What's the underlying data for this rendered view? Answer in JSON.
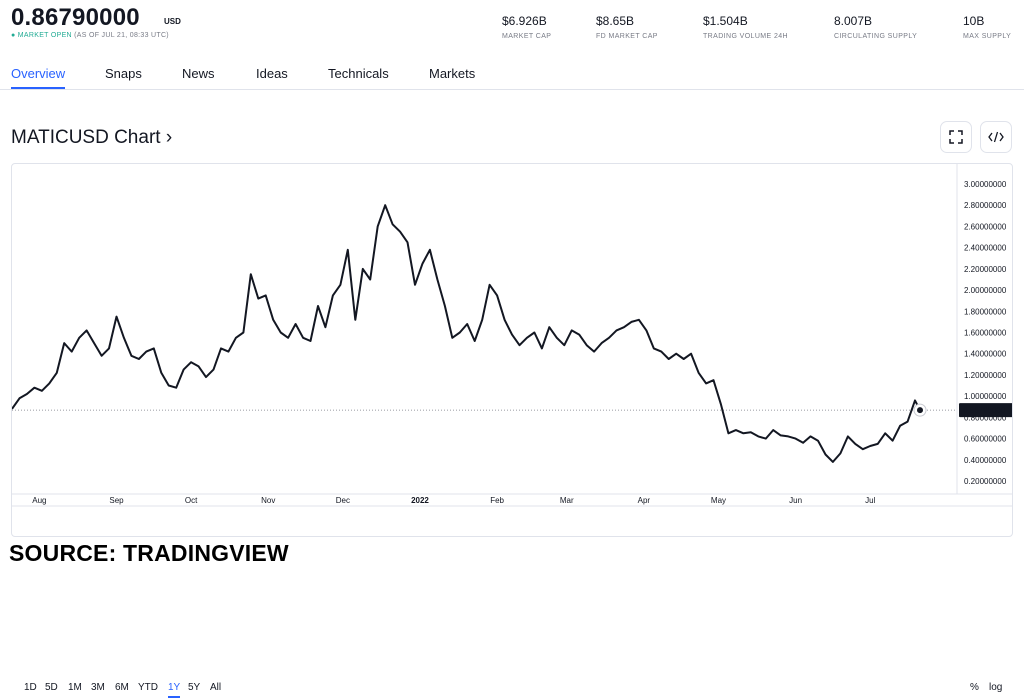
{
  "header": {
    "price": "0.86790000",
    "currency": "USD",
    "market_status": "MARKET OPEN",
    "as_of": "(AS OF JUL 21, 08:33 UTC)"
  },
  "stats": [
    {
      "value": "$6.926B",
      "label": "MARKET CAP"
    },
    {
      "value": "$8.65B",
      "label": "FD MARKET CAP"
    },
    {
      "value": "$1.504B",
      "label": "TRADING VOLUME 24H"
    },
    {
      "value": "8.007B",
      "label": "CIRCULATING SUPPLY"
    },
    {
      "value": "10B",
      "label": "MAX SUPPLY"
    }
  ],
  "tabs": [
    {
      "label": "Overview",
      "active": true
    },
    {
      "label": "Snaps"
    },
    {
      "label": "News"
    },
    {
      "label": "Ideas"
    },
    {
      "label": "Technicals"
    },
    {
      "label": "Markets"
    }
  ],
  "chart_title": "MATICUSD Chart ›",
  "icons": {
    "fullscreen": "fullscreen-icon",
    "embed": "code-icon"
  },
  "ranges": [
    "1D",
    "5D",
    "1M",
    "3M",
    "6M",
    "YTD",
    "1Y",
    "5Y",
    "All"
  ],
  "active_range": "1Y",
  "scale_options": {
    "percent": "%",
    "log": "log"
  },
  "source": "SOURCE: TRADINGVIEW",
  "chart_data": {
    "type": "line",
    "title": "",
    "xlabel": "",
    "ylabel": "",
    "x_tick_labels": [
      "Aug",
      "Sep",
      "Oct",
      "Nov",
      "Dec",
      "2022",
      "Feb",
      "Mar",
      "Apr",
      "May",
      "Jun",
      "Jul"
    ],
    "y_tick_labels": [
      "3.00000000",
      "2.80000000",
      "2.60000000",
      "2.40000000",
      "2.20000000",
      "2.00000000",
      "1.80000000",
      "1.60000000",
      "1.40000000",
      "1.20000000",
      "1.00000000",
      "0.80000000",
      "0.60000000",
      "0.40000000",
      "0.20000000"
    ],
    "ylim": [
      0.2,
      3.0
    ],
    "last_price_label": "0.86790000",
    "last_value": 0.8679,
    "grid": false,
    "line_color": "#131722",
    "series": [
      {
        "x": [
          "2021-07-21",
          "2021-07-24",
          "2021-07-27",
          "2021-07-30",
          "2021-08-02",
          "2021-08-05",
          "2021-08-08",
          "2021-08-11",
          "2021-08-14",
          "2021-08-17",
          "2021-08-20",
          "2021-08-23",
          "2021-08-26",
          "2021-08-29",
          "2021-09-01",
          "2021-09-04",
          "2021-09-07",
          "2021-09-10",
          "2021-09-13",
          "2021-09-16",
          "2021-09-19",
          "2021-09-22",
          "2021-09-25",
          "2021-09-28",
          "2021-10-01",
          "2021-10-04",
          "2021-10-07",
          "2021-10-10",
          "2021-10-13",
          "2021-10-16",
          "2021-10-19",
          "2021-10-22",
          "2021-10-25",
          "2021-10-28",
          "2021-10-31",
          "2021-11-03",
          "2021-11-06",
          "2021-11-09",
          "2021-11-12",
          "2021-11-15",
          "2021-11-18",
          "2021-11-21",
          "2021-11-24",
          "2021-11-27",
          "2021-11-30",
          "2021-12-03",
          "2021-12-06",
          "2021-12-09",
          "2021-12-12",
          "2021-12-15",
          "2021-12-18",
          "2021-12-21",
          "2021-12-24",
          "2021-12-27",
          "2021-12-30",
          "2022-01-02",
          "2022-01-05",
          "2022-01-08",
          "2022-01-11",
          "2022-01-14",
          "2022-01-17",
          "2022-01-20",
          "2022-01-23",
          "2022-01-26",
          "2022-01-29",
          "2022-02-01",
          "2022-02-04",
          "2022-02-07",
          "2022-02-10",
          "2022-02-13",
          "2022-02-16",
          "2022-02-19",
          "2022-02-22",
          "2022-02-25",
          "2022-02-28",
          "2022-03-03",
          "2022-03-06",
          "2022-03-09",
          "2022-03-12",
          "2022-03-15",
          "2022-03-18",
          "2022-03-21",
          "2022-03-24",
          "2022-03-27",
          "2022-03-30",
          "2022-04-02",
          "2022-04-05",
          "2022-04-08",
          "2022-04-11",
          "2022-04-14",
          "2022-04-17",
          "2022-04-20",
          "2022-04-23",
          "2022-04-26",
          "2022-04-29",
          "2022-05-02",
          "2022-05-05",
          "2022-05-08",
          "2022-05-11",
          "2022-05-14",
          "2022-05-17",
          "2022-05-20",
          "2022-05-23",
          "2022-05-26",
          "2022-05-29",
          "2022-06-01",
          "2022-06-04",
          "2022-06-07",
          "2022-06-10",
          "2022-06-13",
          "2022-06-16",
          "2022-06-19",
          "2022-06-22",
          "2022-06-25",
          "2022-06-28",
          "2022-07-01",
          "2022-07-04",
          "2022-07-07",
          "2022-07-10",
          "2022-07-13",
          "2022-07-16",
          "2022-07-19",
          "2022-07-21"
        ],
        "y": [
          0.88,
          0.98,
          1.02,
          1.08,
          1.05,
          1.12,
          1.22,
          1.5,
          1.42,
          1.55,
          1.62,
          1.5,
          1.38,
          1.45,
          1.75,
          1.55,
          1.38,
          1.35,
          1.42,
          1.45,
          1.22,
          1.1,
          1.08,
          1.25,
          1.32,
          1.28,
          1.18,
          1.25,
          1.45,
          1.42,
          1.55,
          1.6,
          2.15,
          1.92,
          1.95,
          1.72,
          1.6,
          1.55,
          1.68,
          1.55,
          1.52,
          1.85,
          1.65,
          1.95,
          2.05,
          2.38,
          1.72,
          2.2,
          2.1,
          2.6,
          2.8,
          2.62,
          2.55,
          2.45,
          2.05,
          2.25,
          2.38,
          2.1,
          1.85,
          1.55,
          1.6,
          1.68,
          1.52,
          1.72,
          2.05,
          1.95,
          1.72,
          1.58,
          1.48,
          1.55,
          1.6,
          1.45,
          1.65,
          1.55,
          1.48,
          1.62,
          1.58,
          1.48,
          1.42,
          1.5,
          1.55,
          1.62,
          1.65,
          1.7,
          1.72,
          1.62,
          1.45,
          1.42,
          1.35,
          1.4,
          1.35,
          1.4,
          1.22,
          1.12,
          1.15,
          0.92,
          0.65,
          0.68,
          0.65,
          0.66,
          0.62,
          0.6,
          0.68,
          0.63,
          0.62,
          0.6,
          0.56,
          0.62,
          0.58,
          0.45,
          0.38,
          0.46,
          0.62,
          0.55,
          0.5,
          0.53,
          0.55,
          0.65,
          0.58,
          0.72,
          0.76,
          0.96,
          0.8679
        ]
      }
    ]
  }
}
